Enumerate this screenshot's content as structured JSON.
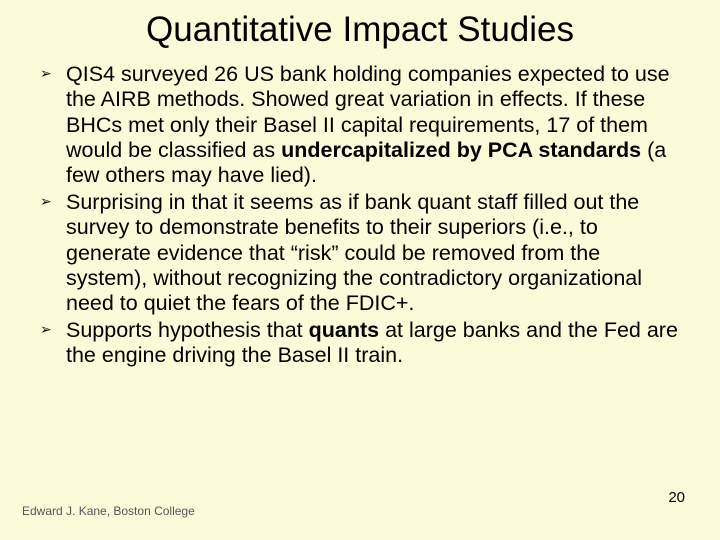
{
  "background_color": "#fbfbd9",
  "title": "Quantitative Impact Studies",
  "bullets": [
    {
      "segments": [
        {
          "text": "QIS4 surveyed 26 US bank holding companies expected to use the AIRB methods. Showed great variation in effects. If these BHCs met only their Basel II capital requirements, 17 of them would be classified as ",
          "bold": false
        },
        {
          "text": "undercapitalized by PCA standards",
          "bold": true
        },
        {
          "text": " (a few others may have lied).",
          "bold": false
        }
      ]
    },
    {
      "segments": [
        {
          "text": "Surprising in that it seems as if bank quant staff filled out the survey to demonstrate benefits to their superiors (i.e., to generate evidence that “risk” could be removed from the system), without recognizing the contradictory organizational need to quiet the fears of the FDIC+.",
          "bold": false
        }
      ]
    },
    {
      "segments": [
        {
          "text": "Supports hypothesis that ",
          "bold": false
        },
        {
          "text": "quants",
          "bold": true
        },
        {
          "text": " at large banks and the Fed are the engine driving the Basel II train.",
          "bold": false
        }
      ]
    }
  ],
  "footer": "Edward J. Kane, Boston College",
  "page_number": "20",
  "bullet_glyph": "➢"
}
